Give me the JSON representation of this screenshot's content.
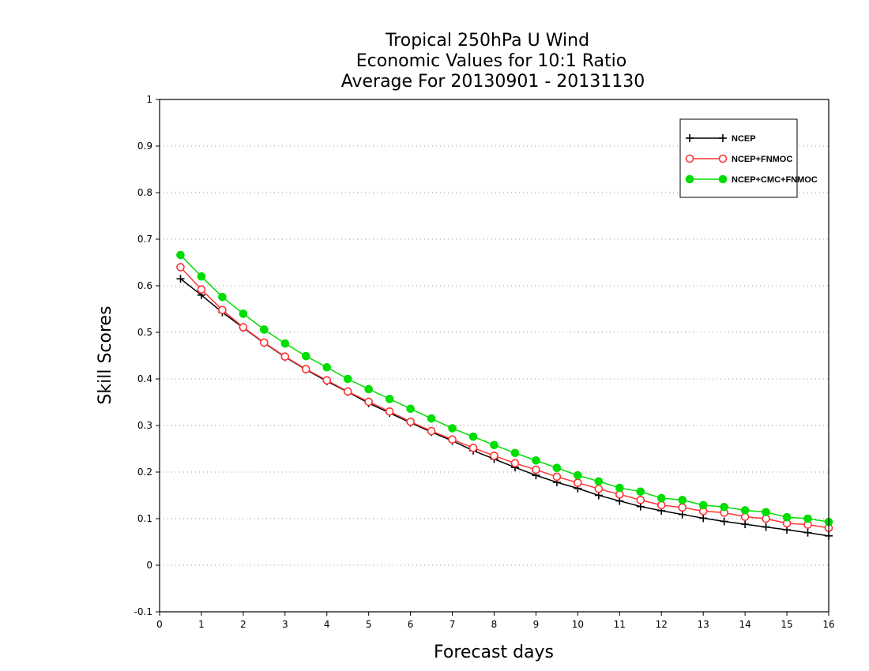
{
  "chart_data": {
    "type": "line",
    "title_lines": [
      "Tropical 250hPa U Wind",
      "Economic Values for 10:1 Ratio",
      "Average For 20130901 - 20131130"
    ],
    "xlabel": "Forecast days",
    "ylabel": "Skill Scores",
    "xlim": [
      0,
      16
    ],
    "ylim": [
      -0.1,
      1
    ],
    "xticks": [
      0,
      1,
      2,
      3,
      4,
      5,
      6,
      7,
      8,
      9,
      10,
      11,
      12,
      13,
      14,
      15,
      16
    ],
    "yticks": [
      -0.1,
      0,
      0.1,
      0.2,
      0.3,
      0.4,
      0.5,
      0.6,
      0.7,
      0.8,
      0.9,
      1
    ],
    "ytick_labels": [
      "-0.1",
      "0",
      "0.1",
      "0.2",
      "0.3",
      "0.4",
      "0.5",
      "0.6",
      "0.7",
      "0.8",
      "0.9",
      "1"
    ],
    "grid": true,
    "legend_position": "top-right",
    "x": [
      0.5,
      1,
      1.5,
      2,
      2.5,
      3,
      3.5,
      4,
      4.5,
      5,
      5.5,
      6,
      6.5,
      7,
      7.5,
      8,
      8.5,
      9,
      9.5,
      10,
      10.5,
      11,
      11.5,
      12,
      12.5,
      13,
      13.5,
      14,
      14.5,
      15,
      15.5,
      16
    ],
    "series": [
      {
        "name": "NCEP",
        "color": "#000000",
        "marker": "plus",
        "values": [
          0.615,
          0.58,
          0.543,
          0.51,
          0.477,
          0.447,
          0.42,
          0.395,
          0.372,
          0.348,
          0.327,
          0.306,
          0.286,
          0.267,
          0.246,
          0.228,
          0.21,
          0.193,
          0.178,
          0.165,
          0.15,
          0.138,
          0.126,
          0.117,
          0.109,
          0.101,
          0.094,
          0.088,
          0.082,
          0.076,
          0.07,
          0.063
        ]
      },
      {
        "name": "NCEP+FNMOC",
        "color": "#ff3333",
        "marker": "open-circle",
        "values": [
          0.64,
          0.592,
          0.548,
          0.511,
          0.478,
          0.448,
          0.421,
          0.397,
          0.373,
          0.351,
          0.33,
          0.308,
          0.288,
          0.27,
          0.252,
          0.235,
          0.219,
          0.205,
          0.19,
          0.177,
          0.164,
          0.152,
          0.14,
          0.129,
          0.124,
          0.116,
          0.113,
          0.104,
          0.1,
          0.09,
          0.087,
          0.08
        ]
      },
      {
        "name": "NCEP+CMC+FNMOC",
        "color": "#00dd00",
        "marker": "filled-circle",
        "values": [
          0.666,
          0.62,
          0.576,
          0.54,
          0.506,
          0.476,
          0.449,
          0.425,
          0.4,
          0.378,
          0.357,
          0.336,
          0.315,
          0.294,
          0.276,
          0.258,
          0.241,
          0.225,
          0.209,
          0.193,
          0.18,
          0.166,
          0.158,
          0.144,
          0.14,
          0.129,
          0.125,
          0.118,
          0.114,
          0.103,
          0.1,
          0.093
        ]
      }
    ]
  }
}
